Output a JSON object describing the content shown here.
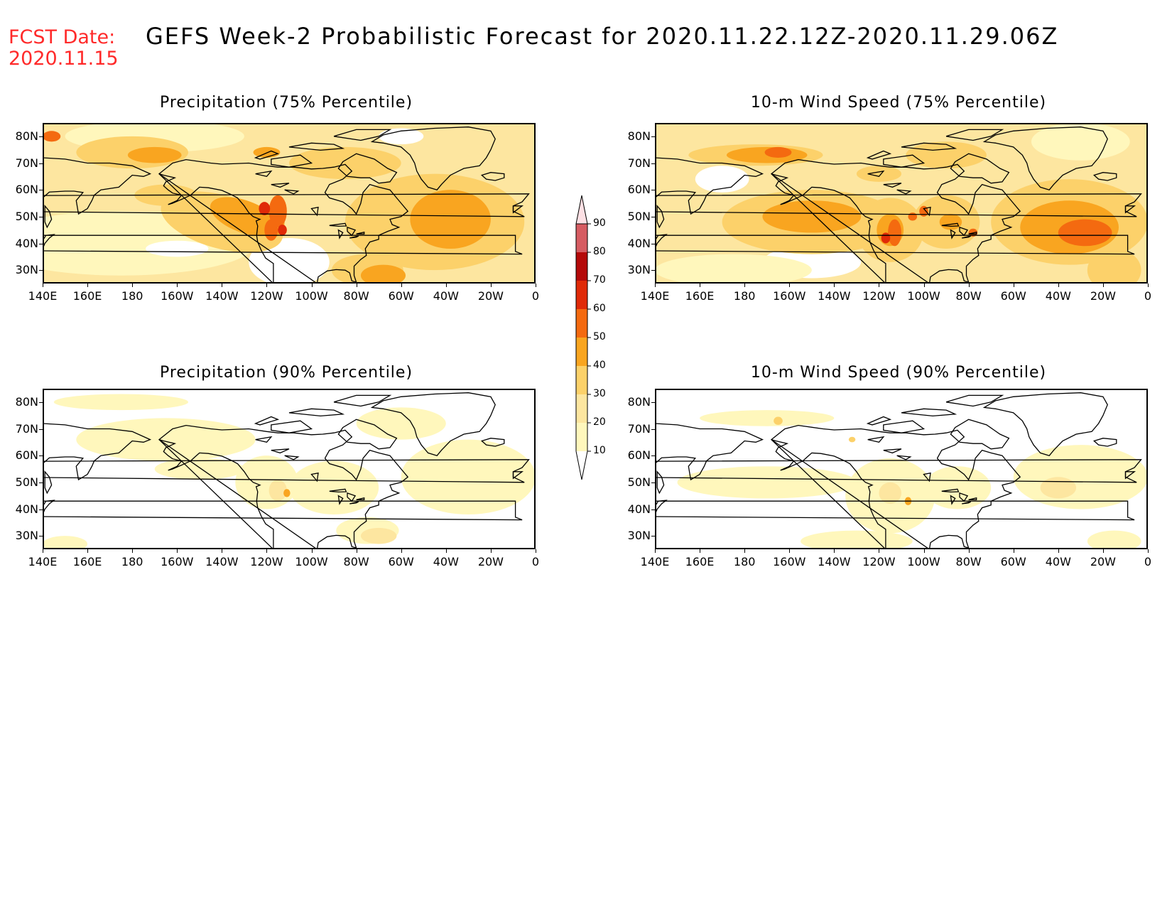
{
  "header": {
    "fcst_label": "FCST Date:",
    "fcst_date": "2020.11.15",
    "title": "GEFS Week-2 Probabilistic Forecast for 2020.11.22.12Z-2020.11.29.06Z"
  },
  "panels": [
    {
      "title": "Precipitation (75% Percentile)"
    },
    {
      "title": "10-m Wind Speed (75% Percentile)"
    },
    {
      "title": "Precipitation (90% Percentile)"
    },
    {
      "title": "10-m Wind Speed (90% Percentile)"
    }
  ],
  "lat_ticks": [
    "80N",
    "70N",
    "60N",
    "50N",
    "40N",
    "30N"
  ],
  "lon_ticks": [
    "140E",
    "160E",
    "180",
    "160W",
    "140W",
    "120W",
    "100W",
    "80W",
    "60W",
    "40W",
    "20W",
    "0"
  ],
  "colorbar": {
    "levels": [
      "10",
      "20",
      "30",
      "40",
      "50",
      "60",
      "70",
      "80",
      "90"
    ],
    "colors": [
      "#fff7bc",
      "#fde6a0",
      "#fcd16a",
      "#f9a520",
      "#f46a10",
      "#e02a08",
      "#b40a0a",
      "#d65c62",
      "#f4a0a8",
      "#fde0e4"
    ]
  },
  "colors": {
    "fcst_text": "#ff2a2a",
    "c10": "#fff7bc",
    "c20": "#fde6a0",
    "c30": "#fcd16a",
    "c40": "#f9a520",
    "c50": "#f46a10",
    "c60": "#e02a08",
    "c70": "#b40a0a"
  }
}
